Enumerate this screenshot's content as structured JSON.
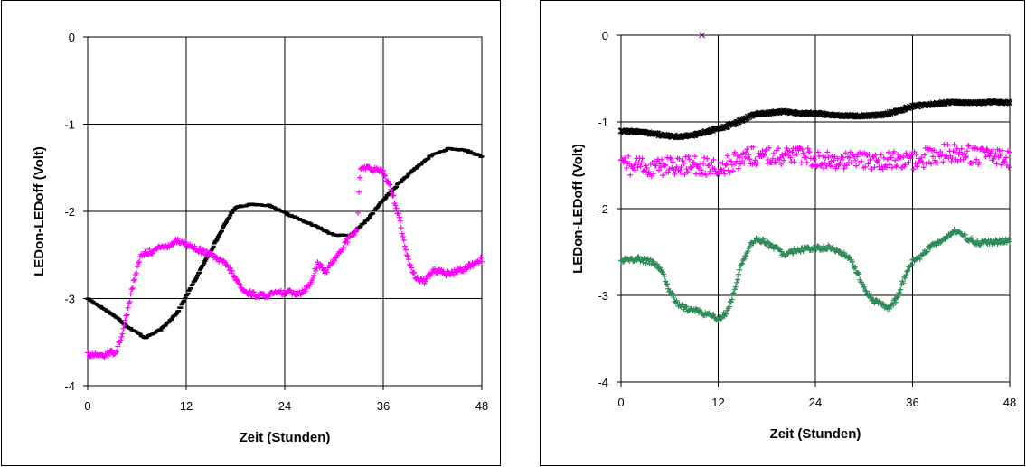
{
  "chart_data": [
    {
      "type": "scatter",
      "title": "",
      "xlabel": "Zeit (Stunden)",
      "ylabel": "LEDon-LEDoff (Volt)",
      "xlim": [
        0,
        48
      ],
      "ylim": [
        -4,
        0
      ],
      "xticks": [
        "0",
        "12",
        "24",
        "36",
        "48"
      ],
      "yticks": [
        "0",
        "-1",
        "-2",
        "-3",
        "-4"
      ],
      "grid": true,
      "legend": "none",
      "series": [
        {
          "color": "#000000",
          "marker": "dash",
          "x": [
            0,
            3,
            5,
            7,
            9,
            11,
            13,
            15,
            17,
            18,
            20,
            22,
            24,
            26,
            28,
            30,
            32,
            34,
            36,
            38,
            40,
            42,
            44,
            46,
            48
          ],
          "y": [
            -3.0,
            -3.18,
            -3.33,
            -3.45,
            -3.35,
            -3.15,
            -2.8,
            -2.45,
            -2.1,
            -1.95,
            -1.92,
            -1.93,
            -2.02,
            -2.1,
            -2.18,
            -2.27,
            -2.28,
            -2.1,
            -1.87,
            -1.67,
            -1.5,
            -1.35,
            -1.28,
            -1.3,
            -1.37
          ]
        },
        {
          "color": "#FF00FF",
          "marker": "plus",
          "x": [
            0,
            2,
            3.5,
            4.5,
            5.5,
            6.5,
            8,
            10,
            11,
            13,
            15,
            17,
            19,
            21,
            24,
            26,
            27,
            28,
            29,
            30,
            31,
            32,
            32.8,
            33.2,
            34,
            36,
            37,
            38,
            39,
            40,
            41,
            42,
            44,
            46,
            48
          ],
          "y": [
            -3.65,
            -3.65,
            -3.6,
            -3.3,
            -2.85,
            -2.5,
            -2.45,
            -2.38,
            -2.33,
            -2.42,
            -2.5,
            -2.62,
            -2.92,
            -2.97,
            -2.93,
            -2.93,
            -2.85,
            -2.6,
            -2.7,
            -2.55,
            -2.42,
            -2.28,
            -2.22,
            -1.5,
            -1.5,
            -1.55,
            -1.75,
            -2.1,
            -2.55,
            -2.78,
            -2.8,
            -2.68,
            -2.72,
            -2.65,
            -2.55
          ]
        }
      ]
    },
    {
      "type": "scatter",
      "title": "",
      "xlabel": "Zeit (Stunden)",
      "ylabel": "LEDon-LEDoff (Volt)",
      "xlim": [
        0,
        48
      ],
      "ylim": [
        -4,
        0
      ],
      "xticks": [
        "0",
        "12",
        "24",
        "36",
        "48"
      ],
      "yticks": [
        "0",
        "-1",
        "-2",
        "-3",
        "-4"
      ],
      "grid": true,
      "legend": "none",
      "series": [
        {
          "color": "#000000",
          "marker": "cross",
          "x": [
            0,
            3,
            5,
            7,
            9,
            11,
            13,
            15,
            16,
            17,
            18,
            20,
            22,
            24,
            26,
            28,
            30,
            32,
            34,
            36,
            38,
            40,
            41,
            42,
            44,
            46,
            48
          ],
          "y": [
            -1.1,
            -1.12,
            -1.15,
            -1.17,
            -1.15,
            -1.1,
            -1.05,
            -0.98,
            -0.93,
            -0.9,
            -0.9,
            -0.88,
            -0.9,
            -0.9,
            -0.92,
            -0.93,
            -0.93,
            -0.92,
            -0.88,
            -0.82,
            -0.8,
            -0.78,
            -0.77,
            -0.78,
            -0.78,
            -0.77,
            -0.78
          ]
        },
        {
          "color": "#FF00FF",
          "marker": "plus",
          "x": [
            0,
            4,
            8,
            12,
            16,
            20,
            24,
            28,
            32,
            36,
            40,
            44,
            48
          ],
          "y": [
            -1.5,
            -1.52,
            -1.5,
            -1.52,
            -1.4,
            -1.38,
            -1.42,
            -1.45,
            -1.45,
            -1.45,
            -1.35,
            -1.38,
            -1.42
          ]
        },
        {
          "color": "#2E8B57",
          "marker": "plus",
          "x": [
            0,
            2,
            4,
            5,
            6,
            7,
            8,
            10,
            11,
            12,
            13,
            14,
            15,
            16,
            17,
            18,
            19,
            20,
            22,
            24,
            26,
            28,
            29,
            30,
            31,
            32,
            33,
            34,
            35,
            36,
            37,
            38,
            40,
            41,
            42,
            44,
            46,
            48
          ],
          "y": [
            -2.6,
            -2.58,
            -2.62,
            -2.7,
            -2.95,
            -3.1,
            -3.15,
            -3.2,
            -3.22,
            -3.28,
            -3.2,
            -2.95,
            -2.6,
            -2.4,
            -2.35,
            -2.4,
            -2.45,
            -2.52,
            -2.48,
            -2.45,
            -2.45,
            -2.55,
            -2.7,
            -2.9,
            -3.05,
            -3.1,
            -3.15,
            -3.05,
            -2.8,
            -2.6,
            -2.55,
            -2.45,
            -2.35,
            -2.25,
            -2.3,
            -2.4,
            -2.38,
            -2.37
          ]
        },
        {
          "color": "#800080",
          "marker": "cross",
          "x": [
            10
          ],
          "y": [
            0
          ]
        }
      ]
    }
  ]
}
